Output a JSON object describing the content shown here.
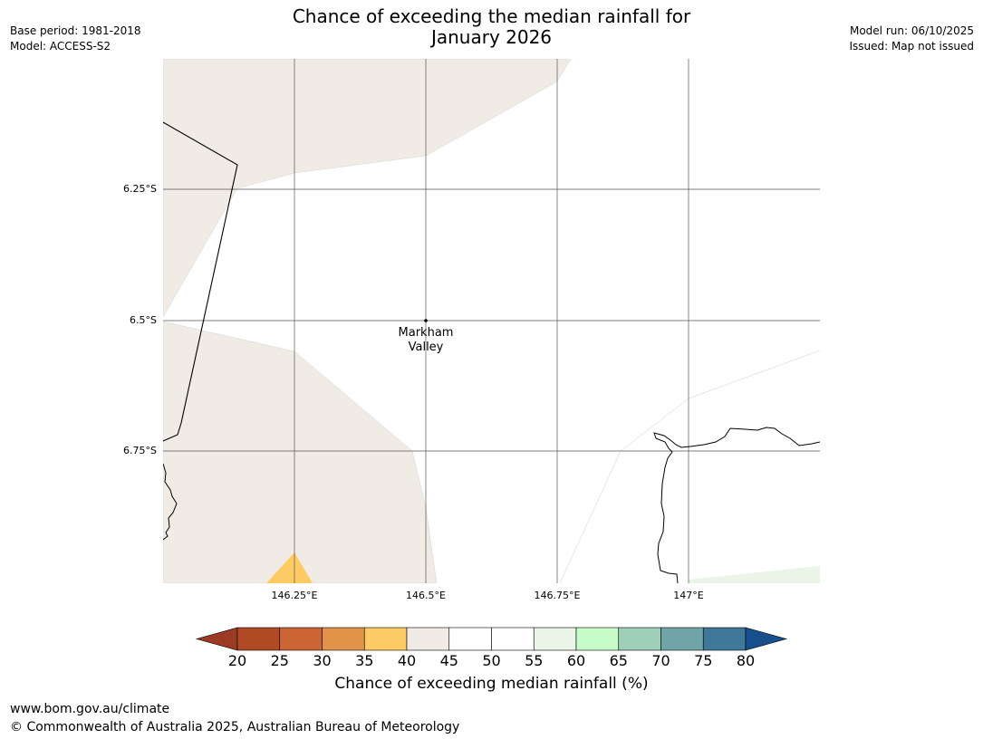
{
  "header": {
    "title_line1": "Chance of exceeding the median rainfall for",
    "title_line2": "January 2026",
    "base_period": "Base period: 1981-2018",
    "model": "Model: ACCESS-S2",
    "model_run": "Model run: 06/10/2025",
    "issued": "Issued: Map not issued"
  },
  "map": {
    "latitude_labels": [
      "6.25°S",
      "6.5°S",
      "6.75°S"
    ],
    "longitude_labels": [
      "146.25°E",
      "146.5°E",
      "146.75°E",
      "147°E"
    ],
    "place": {
      "name_line1": "Markham",
      "name_line2": "Valley"
    },
    "region_colors": {
      "band_40_45": "#f0ebe5",
      "band_35_40": "#fdca64",
      "band_55_60": "#eaf5e8"
    }
  },
  "colorbar": {
    "ticks": [
      "20",
      "25",
      "30",
      "35",
      "40",
      "45",
      "50",
      "55",
      "60",
      "65",
      "70",
      "75",
      "80"
    ],
    "colors": [
      "#9c3b23",
      "#b04a25",
      "#cc6433",
      "#e2934a",
      "#fdca64",
      "#f0ebe5",
      "#ffffff",
      "#ffffff",
      "#eaf5e8",
      "#c7fbc8",
      "#9ecfb8",
      "#6fa5a6",
      "#3f7899",
      "#164f8b"
    ],
    "label": "Chance of exceeding median rainfall (%)"
  },
  "footer": {
    "url": "www.bom.gov.au/climate",
    "copyright": "© Commonwealth of Australia 2025, Australian Bureau of Meteorology"
  }
}
